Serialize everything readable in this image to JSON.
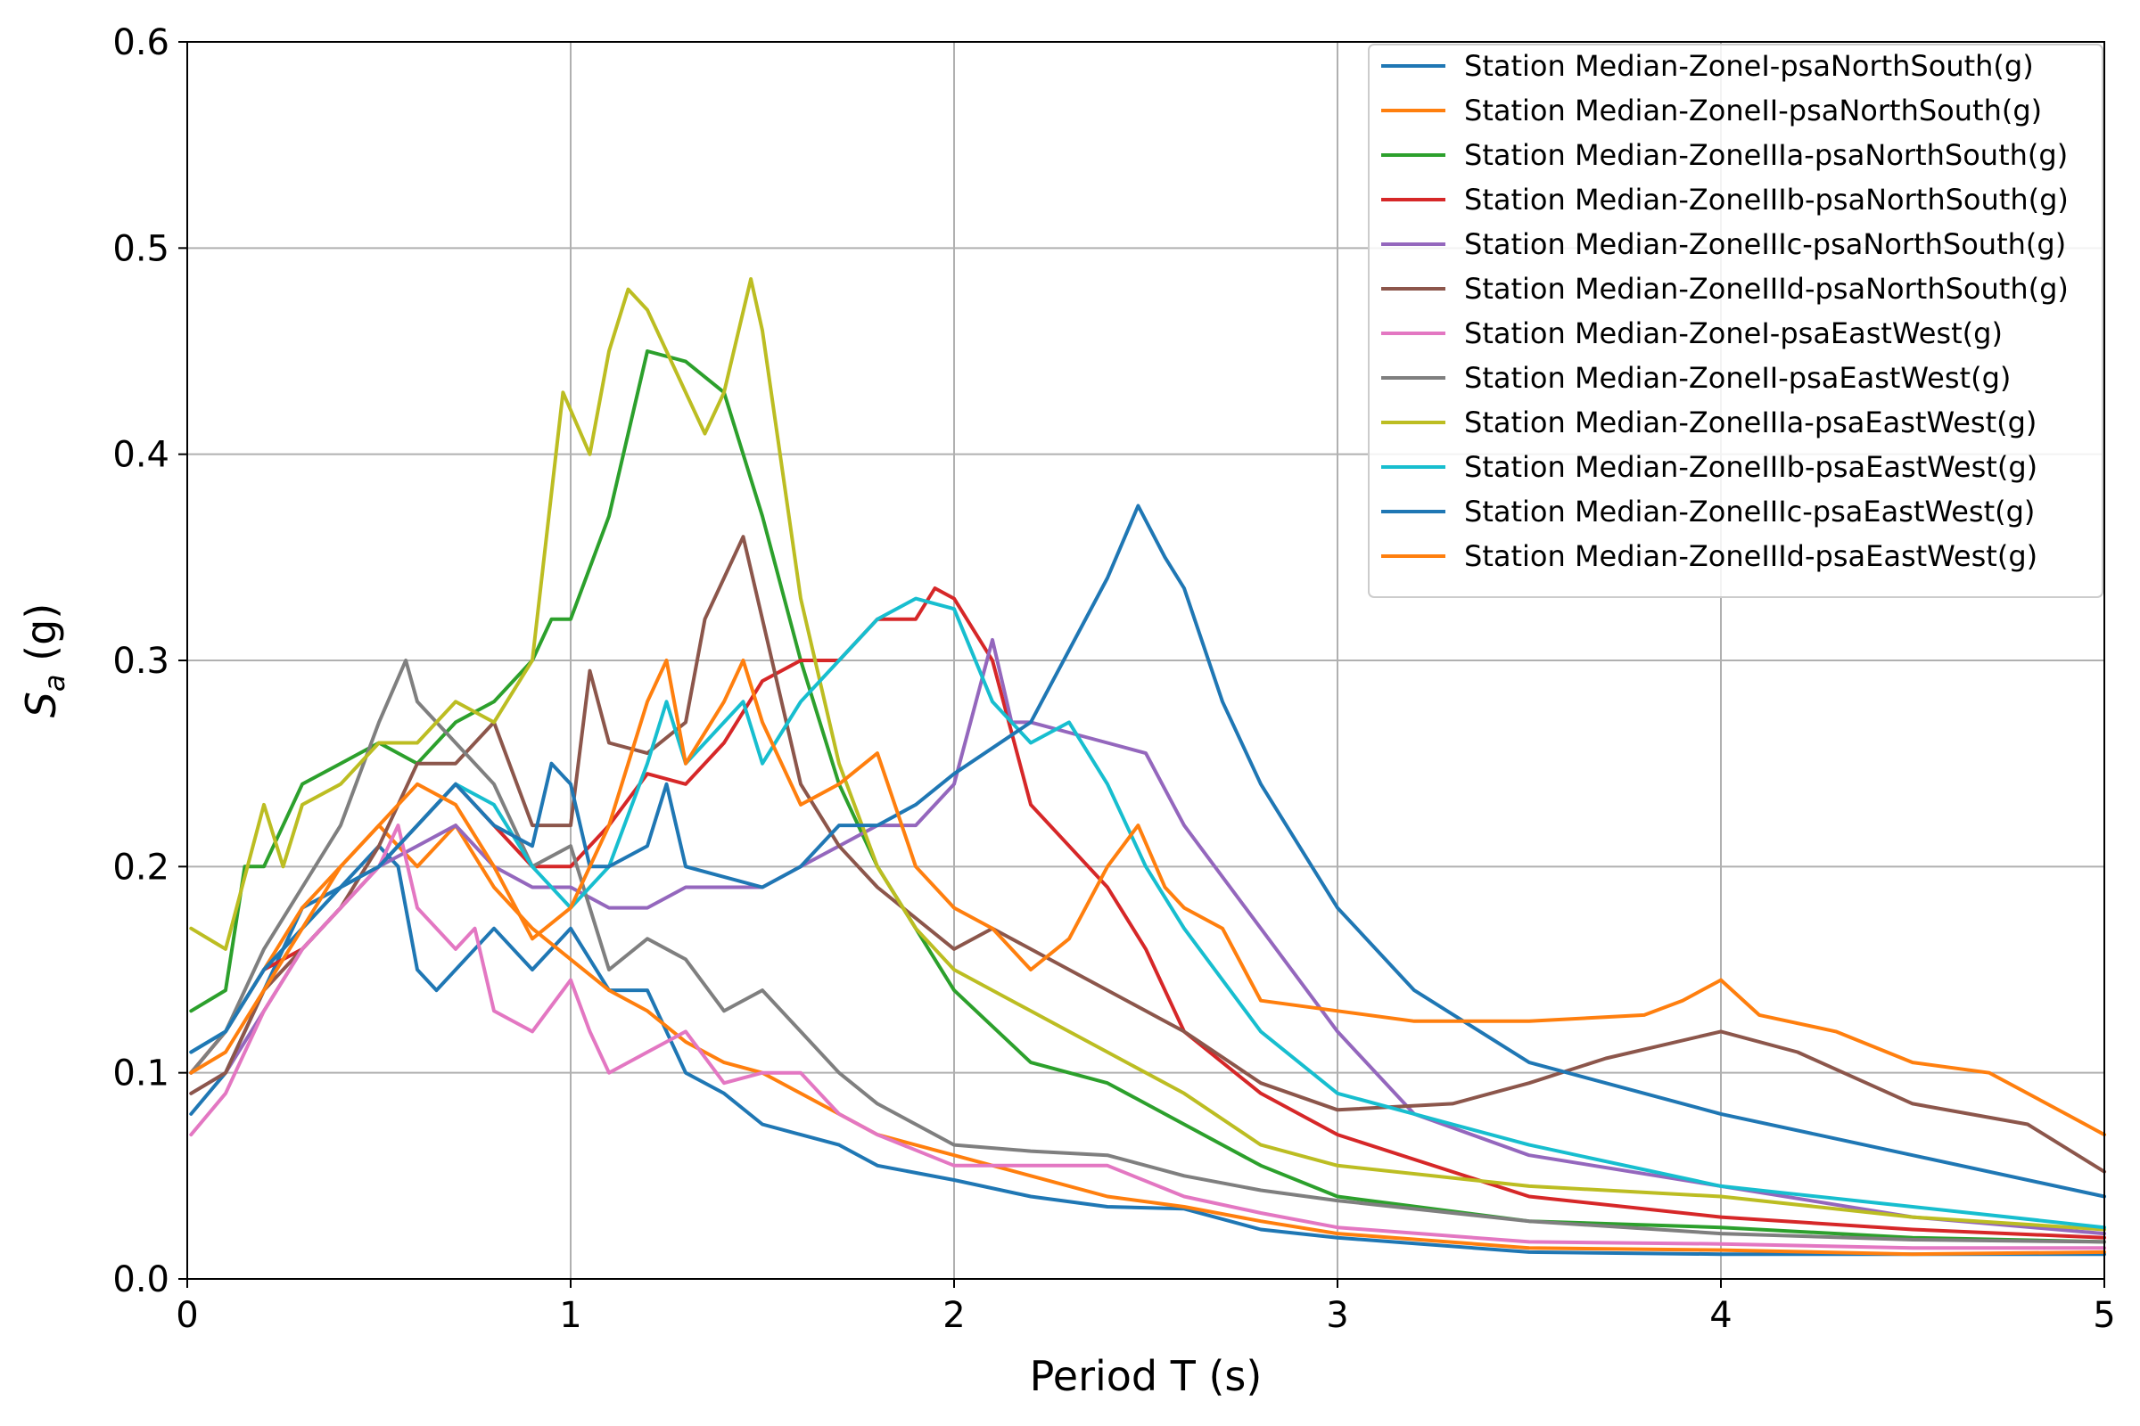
{
  "chart_data": {
    "type": "line",
    "title": "",
    "xlabel": "Period T (s)",
    "ylabel_main": "S",
    "ylabel_sub": "a",
    "ylabel_unit": " (g)",
    "xlim": [
      0,
      5
    ],
    "ylim": [
      0,
      0.6
    ],
    "xticks": [
      0,
      1,
      2,
      3,
      4,
      5
    ],
    "xtick_labels": [
      "0",
      "1",
      "2",
      "3",
      "4",
      "5"
    ],
    "yticks": [
      0,
      0.1,
      0.2,
      0.3,
      0.4,
      0.5,
      0.6
    ],
    "ytick_labels": [
      "0.0",
      "0.1",
      "0.2",
      "0.3",
      "0.4",
      "0.5",
      "0.6"
    ],
    "grid": true,
    "legend_position": "top-right",
    "series": [
      {
        "name": "Station Median-ZoneI-psaNorthSouth(g)",
        "color": "#1f77b4",
        "x": [
          0.01,
          0.1,
          0.2,
          0.3,
          0.4,
          0.5,
          0.55,
          0.6,
          0.65,
          0.7,
          0.8,
          0.9,
          1.0,
          1.1,
          1.2,
          1.3,
          1.4,
          1.5,
          1.6,
          1.7,
          1.8,
          2.0,
          2.2,
          2.4,
          2.6,
          2.8,
          3.0,
          3.5,
          4.0,
          4.5,
          5.0
        ],
        "y": [
          0.08,
          0.1,
          0.14,
          0.18,
          0.19,
          0.21,
          0.2,
          0.15,
          0.14,
          0.15,
          0.17,
          0.15,
          0.17,
          0.14,
          0.14,
          0.1,
          0.09,
          0.075,
          0.07,
          0.065,
          0.055,
          0.048,
          0.04,
          0.035,
          0.034,
          0.024,
          0.02,
          0.013,
          0.012,
          0.012,
          0.012
        ]
      },
      {
        "name": "Station Median-ZoneII-psaNorthSouth(g)",
        "color": "#ff7f0e",
        "x": [
          0.01,
          0.1,
          0.2,
          0.3,
          0.4,
          0.5,
          0.6,
          0.7,
          0.8,
          0.9,
          1.0,
          1.1,
          1.2,
          1.3,
          1.4,
          1.5,
          1.6,
          1.7,
          1.8,
          2.0,
          2.2,
          2.4,
          2.6,
          2.8,
          3.0,
          3.5,
          4.0,
          4.5,
          5.0
        ],
        "y": [
          0.1,
          0.12,
          0.15,
          0.18,
          0.2,
          0.22,
          0.2,
          0.22,
          0.19,
          0.17,
          0.155,
          0.14,
          0.13,
          0.115,
          0.105,
          0.1,
          0.09,
          0.08,
          0.07,
          0.06,
          0.05,
          0.04,
          0.035,
          0.028,
          0.022,
          0.015,
          0.014,
          0.012,
          0.013
        ]
      },
      {
        "name": "Station Median-ZoneIIIa-psaNorthSouth(g)",
        "color": "#2ca02c",
        "x": [
          0.01,
          0.1,
          0.15,
          0.2,
          0.3,
          0.4,
          0.5,
          0.6,
          0.7,
          0.8,
          0.9,
          0.95,
          1.0,
          1.1,
          1.15,
          1.2,
          1.3,
          1.4,
          1.5,
          1.6,
          1.7,
          1.8,
          1.9,
          2.0,
          2.2,
          2.4,
          2.6,
          2.8,
          3.0,
          3.5,
          4.0,
          4.5,
          5.0
        ],
        "y": [
          0.13,
          0.14,
          0.2,
          0.2,
          0.24,
          0.25,
          0.26,
          0.25,
          0.27,
          0.28,
          0.3,
          0.32,
          0.32,
          0.37,
          0.41,
          0.45,
          0.445,
          0.43,
          0.37,
          0.3,
          0.24,
          0.2,
          0.17,
          0.14,
          0.105,
          0.095,
          0.075,
          0.055,
          0.04,
          0.028,
          0.025,
          0.02,
          0.018
        ]
      },
      {
        "name": "Station Median-ZoneIIIb-psaNorthSouth(g)",
        "color": "#d62728",
        "x": [
          0.01,
          0.1,
          0.2,
          0.3,
          0.4,
          0.5,
          0.6,
          0.7,
          0.8,
          0.9,
          1.0,
          1.1,
          1.2,
          1.3,
          1.4,
          1.5,
          1.6,
          1.7,
          1.8,
          1.9,
          1.95,
          2.0,
          2.1,
          2.2,
          2.3,
          2.4,
          2.5,
          2.6,
          2.8,
          3.0,
          3.5,
          4.0,
          4.5,
          5.0
        ],
        "y": [
          0.1,
          0.12,
          0.15,
          0.16,
          0.18,
          0.2,
          0.22,
          0.24,
          0.22,
          0.2,
          0.2,
          0.22,
          0.245,
          0.24,
          0.26,
          0.29,
          0.3,
          0.3,
          0.32,
          0.32,
          0.335,
          0.33,
          0.3,
          0.23,
          0.21,
          0.19,
          0.16,
          0.12,
          0.09,
          0.07,
          0.04,
          0.03,
          0.024,
          0.02
        ]
      },
      {
        "name": "Station Median-ZoneIIIc-psaNorthSouth(g)",
        "color": "#9467bd",
        "x": [
          0.01,
          0.1,
          0.2,
          0.3,
          0.4,
          0.5,
          0.6,
          0.7,
          0.8,
          0.9,
          1.0,
          1.1,
          1.2,
          1.3,
          1.4,
          1.5,
          1.6,
          1.7,
          1.8,
          1.9,
          2.0,
          2.1,
          2.15,
          2.2,
          2.3,
          2.4,
          2.5,
          2.6,
          2.8,
          3.0,
          3.2,
          3.5,
          4.0,
          4.5,
          5.0
        ],
        "y": [
          0.09,
          0.1,
          0.13,
          0.16,
          0.18,
          0.2,
          0.21,
          0.22,
          0.2,
          0.19,
          0.19,
          0.18,
          0.18,
          0.19,
          0.19,
          0.19,
          0.2,
          0.21,
          0.22,
          0.22,
          0.24,
          0.31,
          0.27,
          0.27,
          0.265,
          0.26,
          0.255,
          0.22,
          0.17,
          0.12,
          0.08,
          0.06,
          0.045,
          0.03,
          0.022
        ]
      },
      {
        "name": "Station Median-ZoneIIId-psaNorthSouth(g)",
        "color": "#8c564b",
        "x": [
          0.01,
          0.1,
          0.2,
          0.3,
          0.4,
          0.5,
          0.6,
          0.7,
          0.8,
          0.9,
          1.0,
          1.05,
          1.1,
          1.2,
          1.3,
          1.35,
          1.4,
          1.45,
          1.5,
          1.6,
          1.7,
          1.8,
          2.0,
          2.1,
          2.2,
          2.3,
          2.4,
          2.5,
          2.6,
          2.8,
          3.0,
          3.3,
          3.5,
          3.7,
          4.0,
          4.2,
          4.5,
          4.8,
          5.0
        ],
        "y": [
          0.09,
          0.1,
          0.14,
          0.16,
          0.18,
          0.21,
          0.25,
          0.25,
          0.27,
          0.22,
          0.22,
          0.295,
          0.26,
          0.255,
          0.27,
          0.32,
          0.34,
          0.36,
          0.32,
          0.24,
          0.21,
          0.19,
          0.16,
          0.17,
          0.16,
          0.15,
          0.14,
          0.13,
          0.12,
          0.095,
          0.082,
          0.085,
          0.095,
          0.107,
          0.12,
          0.11,
          0.085,
          0.075,
          0.052
        ]
      },
      {
        "name": "Station Median-ZoneI-psaEastWest(g)",
        "color": "#e377c2",
        "x": [
          0.01,
          0.1,
          0.2,
          0.3,
          0.4,
          0.5,
          0.55,
          0.6,
          0.7,
          0.75,
          0.8,
          0.9,
          1.0,
          1.05,
          1.1,
          1.2,
          1.3,
          1.4,
          1.5,
          1.6,
          1.7,
          1.8,
          2.0,
          2.2,
          2.4,
          2.6,
          2.8,
          3.0,
          3.5,
          4.0,
          4.5,
          5.0
        ],
        "y": [
          0.07,
          0.09,
          0.13,
          0.16,
          0.18,
          0.2,
          0.22,
          0.18,
          0.16,
          0.17,
          0.13,
          0.12,
          0.145,
          0.12,
          0.1,
          0.11,
          0.12,
          0.095,
          0.1,
          0.1,
          0.08,
          0.07,
          0.055,
          0.055,
          0.055,
          0.04,
          0.032,
          0.025,
          0.018,
          0.017,
          0.015,
          0.015
        ]
      },
      {
        "name": "Station Median-ZoneII-psaEastWest(g)",
        "color": "#7f7f7f",
        "x": [
          0.01,
          0.1,
          0.2,
          0.3,
          0.4,
          0.5,
          0.57,
          0.6,
          0.7,
          0.8,
          0.9,
          1.0,
          1.05,
          1.1,
          1.2,
          1.3,
          1.4,
          1.5,
          1.6,
          1.7,
          1.8,
          1.9,
          2.0,
          2.2,
          2.4,
          2.6,
          2.8,
          3.0,
          3.5,
          4.0,
          4.5,
          5.0
        ],
        "y": [
          0.1,
          0.12,
          0.16,
          0.19,
          0.22,
          0.27,
          0.3,
          0.28,
          0.26,
          0.24,
          0.2,
          0.21,
          0.18,
          0.15,
          0.165,
          0.155,
          0.13,
          0.14,
          0.12,
          0.1,
          0.085,
          0.075,
          0.065,
          0.062,
          0.06,
          0.05,
          0.043,
          0.038,
          0.028,
          0.022,
          0.019,
          0.018
        ]
      },
      {
        "name": "Station Median-ZoneIIIa-psaEastWest(g)",
        "color": "#bcbd22",
        "x": [
          0.01,
          0.1,
          0.2,
          0.25,
          0.3,
          0.4,
          0.5,
          0.6,
          0.7,
          0.8,
          0.9,
          0.98,
          1.05,
          1.1,
          1.15,
          1.2,
          1.3,
          1.35,
          1.4,
          1.47,
          1.5,
          1.6,
          1.7,
          1.8,
          1.9,
          2.0,
          2.2,
          2.4,
          2.6,
          2.8,
          3.0,
          3.5,
          4.0,
          4.5,
          5.0
        ],
        "y": [
          0.17,
          0.16,
          0.23,
          0.2,
          0.23,
          0.24,
          0.26,
          0.26,
          0.28,
          0.27,
          0.3,
          0.43,
          0.4,
          0.45,
          0.48,
          0.47,
          0.43,
          0.41,
          0.43,
          0.485,
          0.46,
          0.33,
          0.25,
          0.2,
          0.17,
          0.15,
          0.13,
          0.11,
          0.09,
          0.065,
          0.055,
          0.045,
          0.04,
          0.03,
          0.024
        ]
      },
      {
        "name": "Station Median-ZoneIIIb-psaEastWest(g)",
        "color": "#17becf",
        "x": [
          0.01,
          0.1,
          0.2,
          0.3,
          0.4,
          0.5,
          0.6,
          0.7,
          0.8,
          0.9,
          1.0,
          1.1,
          1.2,
          1.25,
          1.3,
          1.4,
          1.45,
          1.5,
          1.6,
          1.7,
          1.8,
          1.9,
          2.0,
          2.1,
          2.2,
          2.3,
          2.4,
          2.5,
          2.6,
          2.8,
          3.0,
          3.3,
          3.5,
          4.0,
          4.5,
          5.0
        ],
        "y": [
          0.11,
          0.12,
          0.15,
          0.17,
          0.19,
          0.2,
          0.22,
          0.24,
          0.23,
          0.2,
          0.18,
          0.2,
          0.25,
          0.28,
          0.25,
          0.27,
          0.28,
          0.25,
          0.28,
          0.3,
          0.32,
          0.33,
          0.325,
          0.28,
          0.26,
          0.27,
          0.24,
          0.2,
          0.17,
          0.12,
          0.09,
          0.075,
          0.065,
          0.045,
          0.035,
          0.025
        ]
      },
      {
        "name": "Station Median-ZoneIIIc-psaEastWest(g)",
        "color": "#1f77b4",
        "x": [
          0.01,
          0.1,
          0.2,
          0.3,
          0.4,
          0.5,
          0.6,
          0.7,
          0.8,
          0.9,
          0.95,
          1.0,
          1.05,
          1.1,
          1.2,
          1.25,
          1.3,
          1.4,
          1.5,
          1.6,
          1.7,
          1.8,
          1.9,
          2.0,
          2.2,
          2.4,
          2.48,
          2.55,
          2.6,
          2.7,
          2.8,
          3.0,
          3.2,
          3.5,
          4.0,
          4.5,
          5.0
        ],
        "y": [
          0.11,
          0.12,
          0.15,
          0.17,
          0.19,
          0.2,
          0.22,
          0.24,
          0.22,
          0.21,
          0.25,
          0.24,
          0.2,
          0.2,
          0.21,
          0.24,
          0.2,
          0.195,
          0.19,
          0.2,
          0.22,
          0.22,
          0.23,
          0.245,
          0.27,
          0.34,
          0.375,
          0.35,
          0.335,
          0.28,
          0.24,
          0.18,
          0.14,
          0.105,
          0.08,
          0.06,
          0.04
        ]
      },
      {
        "name": "Station Median-ZoneIIId-psaEastWest(g)",
        "color": "#ff7f0e",
        "x": [
          0.01,
          0.1,
          0.2,
          0.3,
          0.4,
          0.5,
          0.6,
          0.7,
          0.8,
          0.9,
          1.0,
          1.1,
          1.2,
          1.25,
          1.3,
          1.4,
          1.45,
          1.5,
          1.6,
          1.7,
          1.8,
          1.9,
          2.0,
          2.1,
          2.2,
          2.3,
          2.4,
          2.48,
          2.55,
          2.6,
          2.7,
          2.8,
          3.0,
          3.2,
          3.5,
          3.8,
          3.9,
          4.0,
          4.1,
          4.3,
          4.5,
          4.7,
          4.9,
          5.0
        ],
        "y": [
          0.1,
          0.11,
          0.14,
          0.17,
          0.2,
          0.22,
          0.24,
          0.23,
          0.2,
          0.165,
          0.18,
          0.22,
          0.28,
          0.3,
          0.25,
          0.28,
          0.3,
          0.27,
          0.23,
          0.24,
          0.255,
          0.2,
          0.18,
          0.17,
          0.15,
          0.165,
          0.2,
          0.22,
          0.19,
          0.18,
          0.17,
          0.135,
          0.13,
          0.125,
          0.125,
          0.128,
          0.135,
          0.145,
          0.128,
          0.12,
          0.105,
          0.1,
          0.08,
          0.07
        ]
      }
    ]
  }
}
